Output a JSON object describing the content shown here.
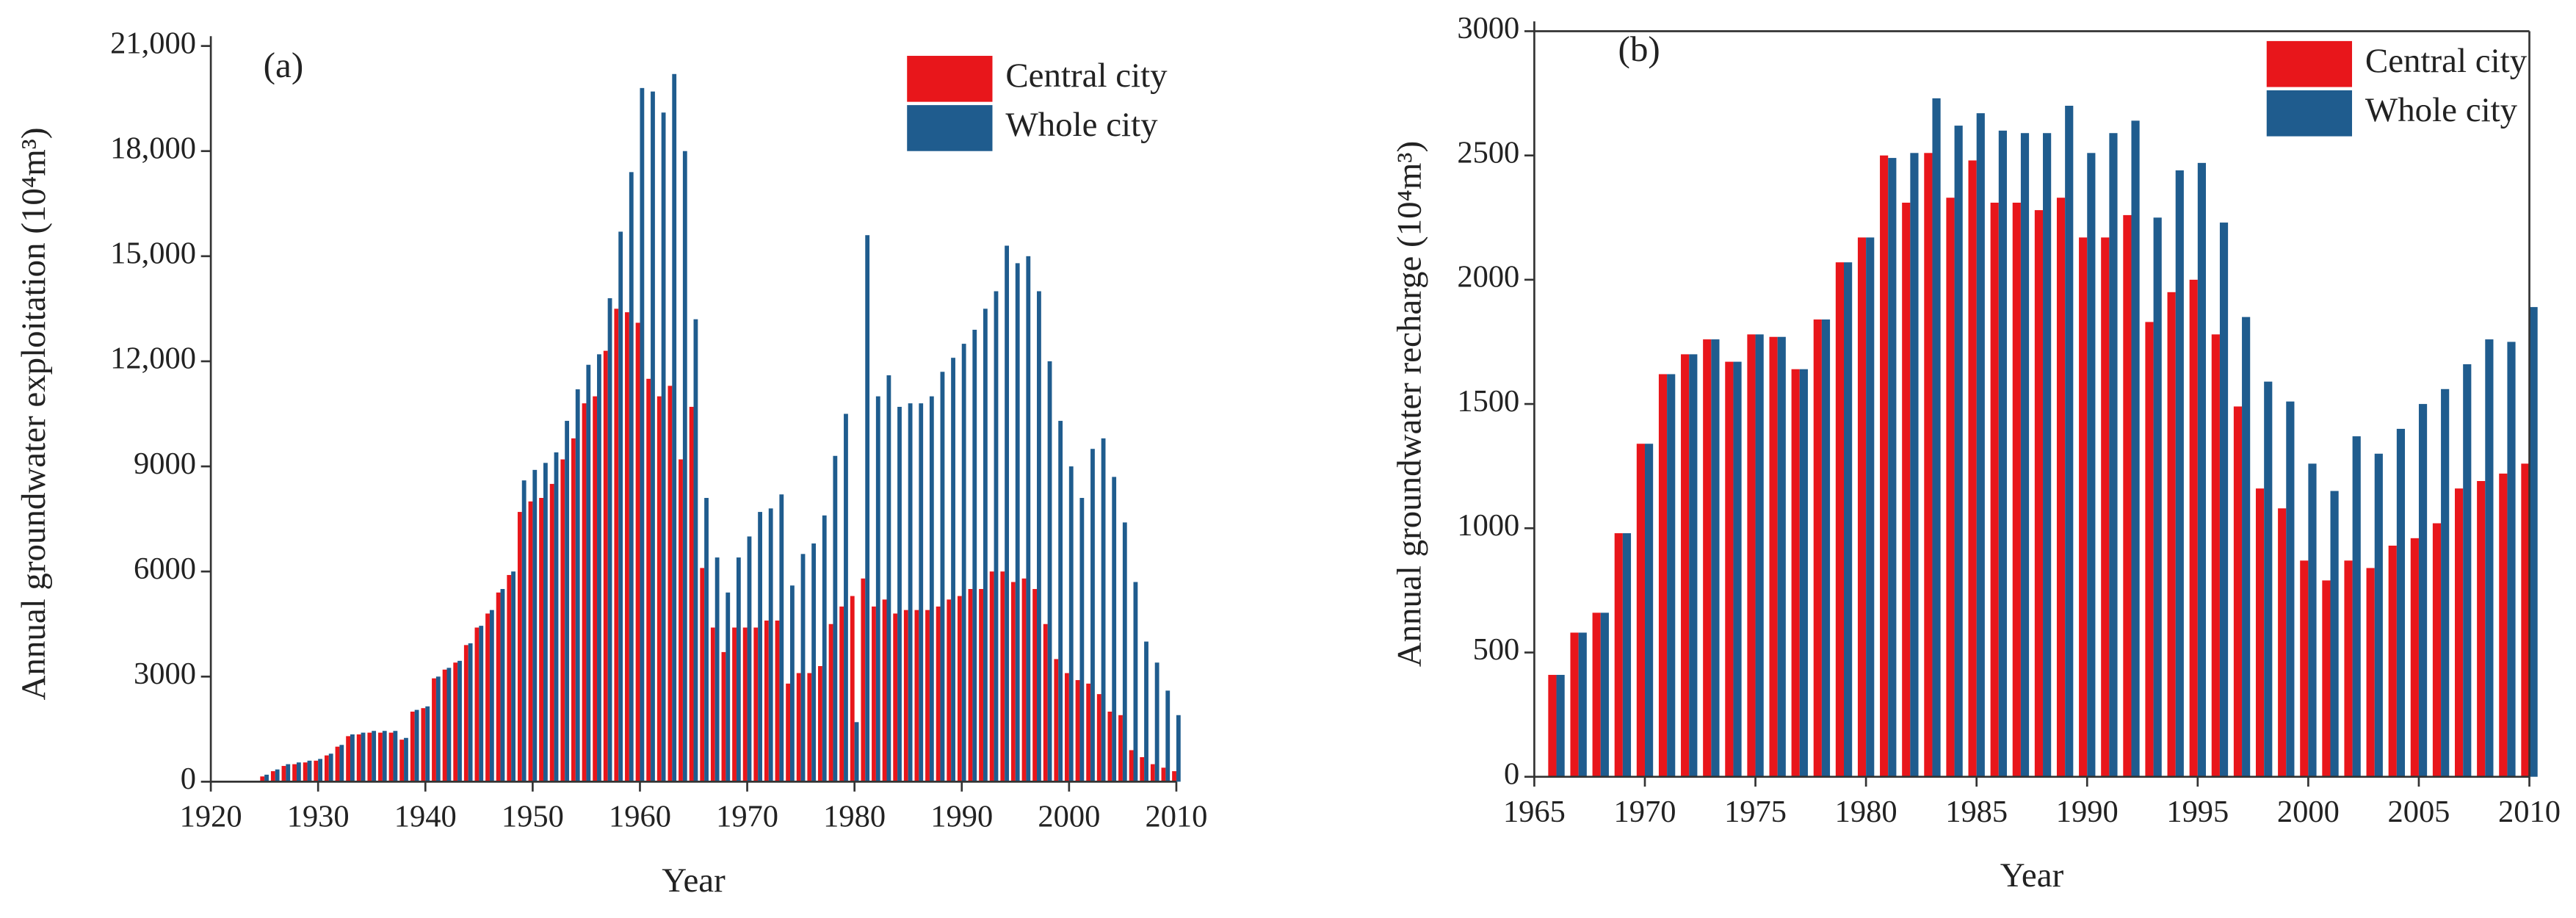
{
  "chart_data": [
    {
      "type": "bar",
      "title": "(a)",
      "xlabel": "Year",
      "ylabel": "Annual groundwater exploitation (10⁴m³)",
      "x": [
        1925,
        1926,
        1927,
        1928,
        1929,
        1930,
        1931,
        1932,
        1933,
        1934,
        1935,
        1936,
        1937,
        1938,
        1939,
        1940,
        1941,
        1942,
        1943,
        1944,
        1945,
        1946,
        1947,
        1948,
        1949,
        1950,
        1951,
        1952,
        1953,
        1954,
        1955,
        1956,
        1957,
        1958,
        1959,
        1960,
        1961,
        1962,
        1963,
        1964,
        1965,
        1966,
        1967,
        1968,
        1969,
        1970,
        1971,
        1972,
        1973,
        1974,
        1975,
        1976,
        1977,
        1978,
        1979,
        1980,
        1981,
        1982,
        1983,
        1984,
        1985,
        1986,
        1987,
        1988,
        1989,
        1990,
        1991,
        1992,
        1993,
        1994,
        1995,
        1996,
        1997,
        1998,
        1999,
        2000,
        2001,
        2002,
        2003,
        2004,
        2005,
        2006,
        2007,
        2008,
        2009,
        2010
      ],
      "series": [
        {
          "name": "Central city",
          "color": "#e8161b",
          "values": [
            150,
            300,
            450,
            500,
            550,
            600,
            750,
            1000,
            1300,
            1350,
            1400,
            1400,
            1400,
            1200,
            2000,
            2100,
            2950,
            3200,
            3400,
            3900,
            4400,
            4800,
            5400,
            5900,
            7700,
            8000,
            8100,
            8500,
            9200,
            9800,
            10800,
            11000,
            12300,
            13500,
            13400,
            13100,
            11500,
            11000,
            11300,
            9200,
            10700,
            6100,
            4400,
            3700,
            4400,
            4400,
            4400,
            4600,
            4600,
            2800,
            3100,
            3100,
            3300,
            4500,
            5000,
            5300,
            5800,
            5000,
            5200,
            4800,
            4900,
            4900,
            4900,
            5000,
            5200,
            5300,
            5500,
            5500,
            6000,
            6000,
            5700,
            5800,
            5500,
            4500,
            3500,
            3100,
            2900,
            2800,
            2500,
            2000,
            1900,
            900,
            700,
            500,
            400,
            300
          ]
        },
        {
          "name": "Whole city",
          "color": "#1f5c8e",
          "values": [
            200,
            350,
            500,
            550,
            600,
            650,
            800,
            1050,
            1350,
            1400,
            1450,
            1450,
            1450,
            1250,
            2050,
            2150,
            3000,
            3250,
            3450,
            3950,
            4450,
            4900,
            5500,
            6000,
            8600,
            8900,
            9100,
            9400,
            10300,
            11200,
            11900,
            12200,
            13800,
            15700,
            17400,
            19800,
            19700,
            19100,
            20200,
            18000,
            13200,
            8100,
            6400,
            5400,
            6400,
            7000,
            7700,
            7800,
            8200,
            5600,
            6500,
            6800,
            7600,
            9300,
            10500,
            1700,
            15600,
            11000,
            11600,
            10700,
            10800,
            10800,
            11000,
            11700,
            12100,
            12500,
            12900,
            13500,
            14000,
            15300,
            14800,
            15000,
            14000,
            12000,
            10300,
            9000,
            8100,
            9500,
            9800,
            8700,
            7400,
            5700,
            4000,
            3400,
            2600,
            1900
          ]
        }
      ],
      "xlim": [
        1920,
        2010
      ],
      "xticks": [
        1920,
        1930,
        1940,
        1950,
        1960,
        1970,
        1980,
        1990,
        2000,
        2010
      ],
      "ylim": [
        0,
        21000
      ],
      "yticks": [
        0,
        3000,
        6000,
        9000,
        {
          "value": 12000,
          "label": "12,000"
        },
        {
          "value": 15000,
          "label": "15,000"
        },
        {
          "value": 18000,
          "label": "18,000"
        },
        {
          "value": 21000,
          "label": "21,000"
        }
      ],
      "legend": "upper right"
    },
    {
      "type": "bar",
      "title": "(b)",
      "xlabel": "Year",
      "ylabel": "Annual groundwater  recharge (10⁴m³)",
      "x": [
        1966,
        1967,
        1968,
        1969,
        1970,
        1971,
        1972,
        1973,
        1974,
        1975,
        1976,
        1977,
        1978,
        1979,
        1980,
        1981,
        1982,
        1983,
        1984,
        1985,
        1986,
        1987,
        1988,
        1989,
        1990,
        1991,
        1992,
        1993,
        1994,
        1995,
        1996,
        1997,
        1998,
        1999,
        2000,
        2001,
        2002,
        2003,
        2004,
        2005,
        2006,
        2007,
        2008,
        2009,
        2010
      ],
      "series": [
        {
          "name": "Central city",
          "color": "#e8161b",
          "values": [
            410,
            580,
            660,
            980,
            1340,
            1620,
            1700,
            1760,
            1670,
            1780,
            1770,
            1640,
            1840,
            2070,
            2170,
            2500,
            2310,
            2510,
            2330,
            2480,
            2310,
            2310,
            2280,
            2330,
            2170,
            2170,
            2260,
            1830,
            1950,
            2000,
            1780,
            1490,
            1160,
            1080,
            870,
            790,
            870,
            840,
            930,
            960,
            1020,
            1160,
            1190,
            1220,
            1260
          ]
        },
        {
          "name": "Whole city",
          "color": "#1f5c8e",
          "values": [
            410,
            580,
            660,
            980,
            1340,
            1620,
            1700,
            1760,
            1670,
            1780,
            1770,
            1640,
            1840,
            2070,
            2170,
            2490,
            2510,
            2730,
            2620,
            2670,
            2600,
            2590,
            2590,
            2700,
            2510,
            2590,
            2640,
            2250,
            2440,
            2470,
            2230,
            1850,
            1590,
            1510,
            1260,
            1150,
            1370,
            1300,
            1400,
            1500,
            1560,
            1660,
            1760,
            1750,
            1890
          ]
        }
      ],
      "xlim": [
        1965,
        2010
      ],
      "xticks": [
        1965,
        1970,
        1975,
        1980,
        1985,
        1990,
        1995,
        2000,
        2005,
        2010
      ],
      "ylim": [
        0,
        3000
      ],
      "yticks": [
        0,
        500,
        1000,
        1500,
        2000,
        2500,
        3000
      ],
      "legend": "upper right"
    }
  ]
}
